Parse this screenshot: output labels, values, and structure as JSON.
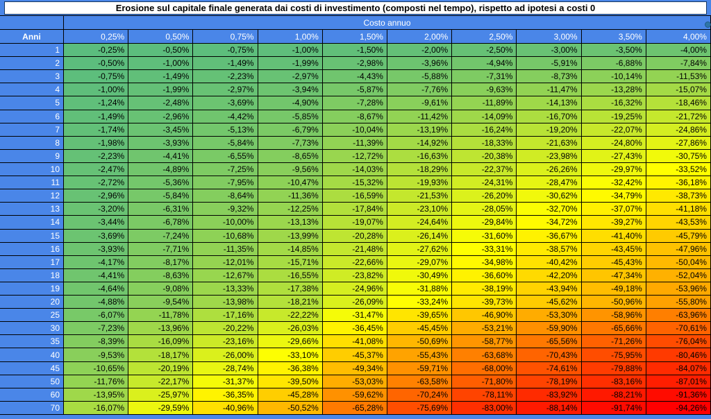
{
  "chart_data": {
    "type": "heatmap",
    "title": "Erosione sul capitale finale generata dai costi di investimento (composti nel tempo), rispetto ad ipotesi a costi 0",
    "x_axis_label": "Costo annuo",
    "y_axis_label": "Anni",
    "x_categories_pct": [
      0.25,
      0.5,
      0.75,
      1.0,
      1.5,
      2.0,
      2.5,
      3.0,
      3.5,
      4.0
    ],
    "y_categories_years": [
      1,
      2,
      3,
      4,
      5,
      6,
      7,
      8,
      9,
      10,
      11,
      12,
      13,
      14,
      15,
      16,
      17,
      18,
      19,
      20,
      25,
      30,
      35,
      40,
      45,
      50,
      60,
      70
    ],
    "values_pct": [
      [
        -0.25,
        -0.5,
        -0.75,
        -1.0,
        -1.5,
        -2.0,
        -2.5,
        -3.0,
        -3.5,
        -4.0
      ],
      [
        -0.5,
        -1.0,
        -1.49,
        -1.99,
        -2.98,
        -3.96,
        -4.94,
        -5.91,
        -6.88,
        -7.84
      ],
      [
        -0.75,
        -1.49,
        -2.23,
        -2.97,
        -4.43,
        -5.88,
        -7.31,
        -8.73,
        -10.14,
        -11.53
      ],
      [
        -1.0,
        -1.99,
        -2.97,
        -3.94,
        -5.87,
        -7.76,
        -9.63,
        -11.47,
        -13.28,
        -15.07
      ],
      [
        -1.24,
        -2.48,
        -3.69,
        -4.9,
        -7.28,
        -9.61,
        -11.89,
        -14.13,
        -16.32,
        -18.46
      ],
      [
        -1.49,
        -2.96,
        -4.42,
        -5.85,
        -8.67,
        -11.42,
        -14.09,
        -16.7,
        -19.25,
        -21.72
      ],
      [
        -1.74,
        -3.45,
        -5.13,
        -6.79,
        -10.04,
        -13.19,
        -16.24,
        -19.2,
        -22.07,
        -24.86
      ],
      [
        -1.98,
        -3.93,
        -5.84,
        -7.73,
        -11.39,
        -14.92,
        -18.33,
        -21.63,
        -24.8,
        -27.86
      ],
      [
        -2.23,
        -4.41,
        -6.55,
        -8.65,
        -12.72,
        -16.63,
        -20.38,
        -23.98,
        -27.43,
        -30.75
      ],
      [
        -2.47,
        -4.89,
        -7.25,
        -9.56,
        -14.03,
        -18.29,
        -22.37,
        -26.26,
        -29.97,
        -33.52
      ],
      [
        -2.72,
        -5.36,
        -7.95,
        -10.47,
        -15.32,
        -19.93,
        -24.31,
        -28.47,
        -32.42,
        -36.18
      ],
      [
        -2.96,
        -5.84,
        -8.64,
        -11.36,
        -16.59,
        -21.53,
        -26.2,
        -30.62,
        -34.79,
        -38.73
      ],
      [
        -3.2,
        -6.31,
        -9.32,
        -12.25,
        -17.84,
        -23.1,
        -28.05,
        -32.7,
        -37.07,
        -41.18
      ],
      [
        -3.44,
        -6.78,
        -10.0,
        -13.13,
        -19.07,
        -24.64,
        -29.84,
        -34.72,
        -39.27,
        -43.53
      ],
      [
        -3.69,
        -7.24,
        -10.68,
        -13.99,
        -20.28,
        -26.14,
        -31.6,
        -36.67,
        -41.4,
        -45.79
      ],
      [
        -3.93,
        -7.71,
        -11.35,
        -14.85,
        -21.48,
        -27.62,
        -33.31,
        -38.57,
        -43.45,
        -47.96
      ],
      [
        -4.17,
        -8.17,
        -12.01,
        -15.71,
        -22.66,
        -29.07,
        -34.98,
        -40.42,
        -45.43,
        -50.04
      ],
      [
        -4.41,
        -8.63,
        -12.67,
        -16.55,
        -23.82,
        -30.49,
        -36.6,
        -42.2,
        -47.34,
        -52.04
      ],
      [
        -4.64,
        -9.08,
        -13.33,
        -17.38,
        -24.96,
        -31.88,
        -38.19,
        -43.94,
        -49.18,
        -53.96
      ],
      [
        -4.88,
        -9.54,
        -13.98,
        -18.21,
        -26.09,
        -33.24,
        -39.73,
        -45.62,
        -50.96,
        -55.8
      ],
      [
        -6.07,
        -11.78,
        -17.16,
        -22.22,
        -31.47,
        -39.65,
        -46.9,
        -53.3,
        -58.96,
        -63.96
      ],
      [
        -7.23,
        -13.96,
        -20.22,
        -26.03,
        -36.45,
        -45.45,
        -53.21,
        -59.9,
        -65.66,
        -70.61
      ],
      [
        -8.39,
        -16.09,
        -23.16,
        -29.66,
        -41.08,
        -50.69,
        -58.77,
        -65.56,
        -71.26,
        -76.04
      ],
      [
        -9.53,
        -18.17,
        -26.0,
        -33.1,
        -45.37,
        -55.43,
        -63.68,
        -70.43,
        -75.95,
        -80.46
      ],
      [
        -10.65,
        -20.19,
        -28.74,
        -36.38,
        -49.34,
        -59.71,
        -68.0,
        -74.61,
        -79.88,
        -84.07
      ],
      [
        -11.76,
        -22.17,
        -31.37,
        -39.5,
        -53.03,
        -63.58,
        -71.8,
        -78.19,
        -83.16,
        -87.01
      ],
      [
        -13.95,
        -25.97,
        -36.35,
        -45.28,
        -59.62,
        -70.24,
        -78.11,
        -83.92,
        -88.21,
        -91.36
      ],
      [
        -16.07,
        -29.59,
        -40.96,
        -50.52,
        -65.28,
        -75.69,
        -83.0,
        -88.14,
        -91.74,
        -94.26
      ]
    ],
    "color_scale": {
      "min_color": "#5bbd7e",
      "mid_color": "#ffff00",
      "max_color": "#ff0000",
      "anchors_abs_pct": [
        0.25,
        33.5,
        94.26
      ],
      "legend": "green = low erosion, yellow = medium, red = high"
    },
    "number_format": {
      "decimals": 2,
      "decimal_separator": ",",
      "suffix": "%"
    }
  },
  "colors": {
    "header_blue": "#4a86e8",
    "header_text": "#ffffff",
    "body_text": "#000000",
    "title_bg": "#ffffff",
    "frame_border": "#17375e",
    "grid_border": "#000000",
    "selection_handle": "#2e75a8"
  }
}
